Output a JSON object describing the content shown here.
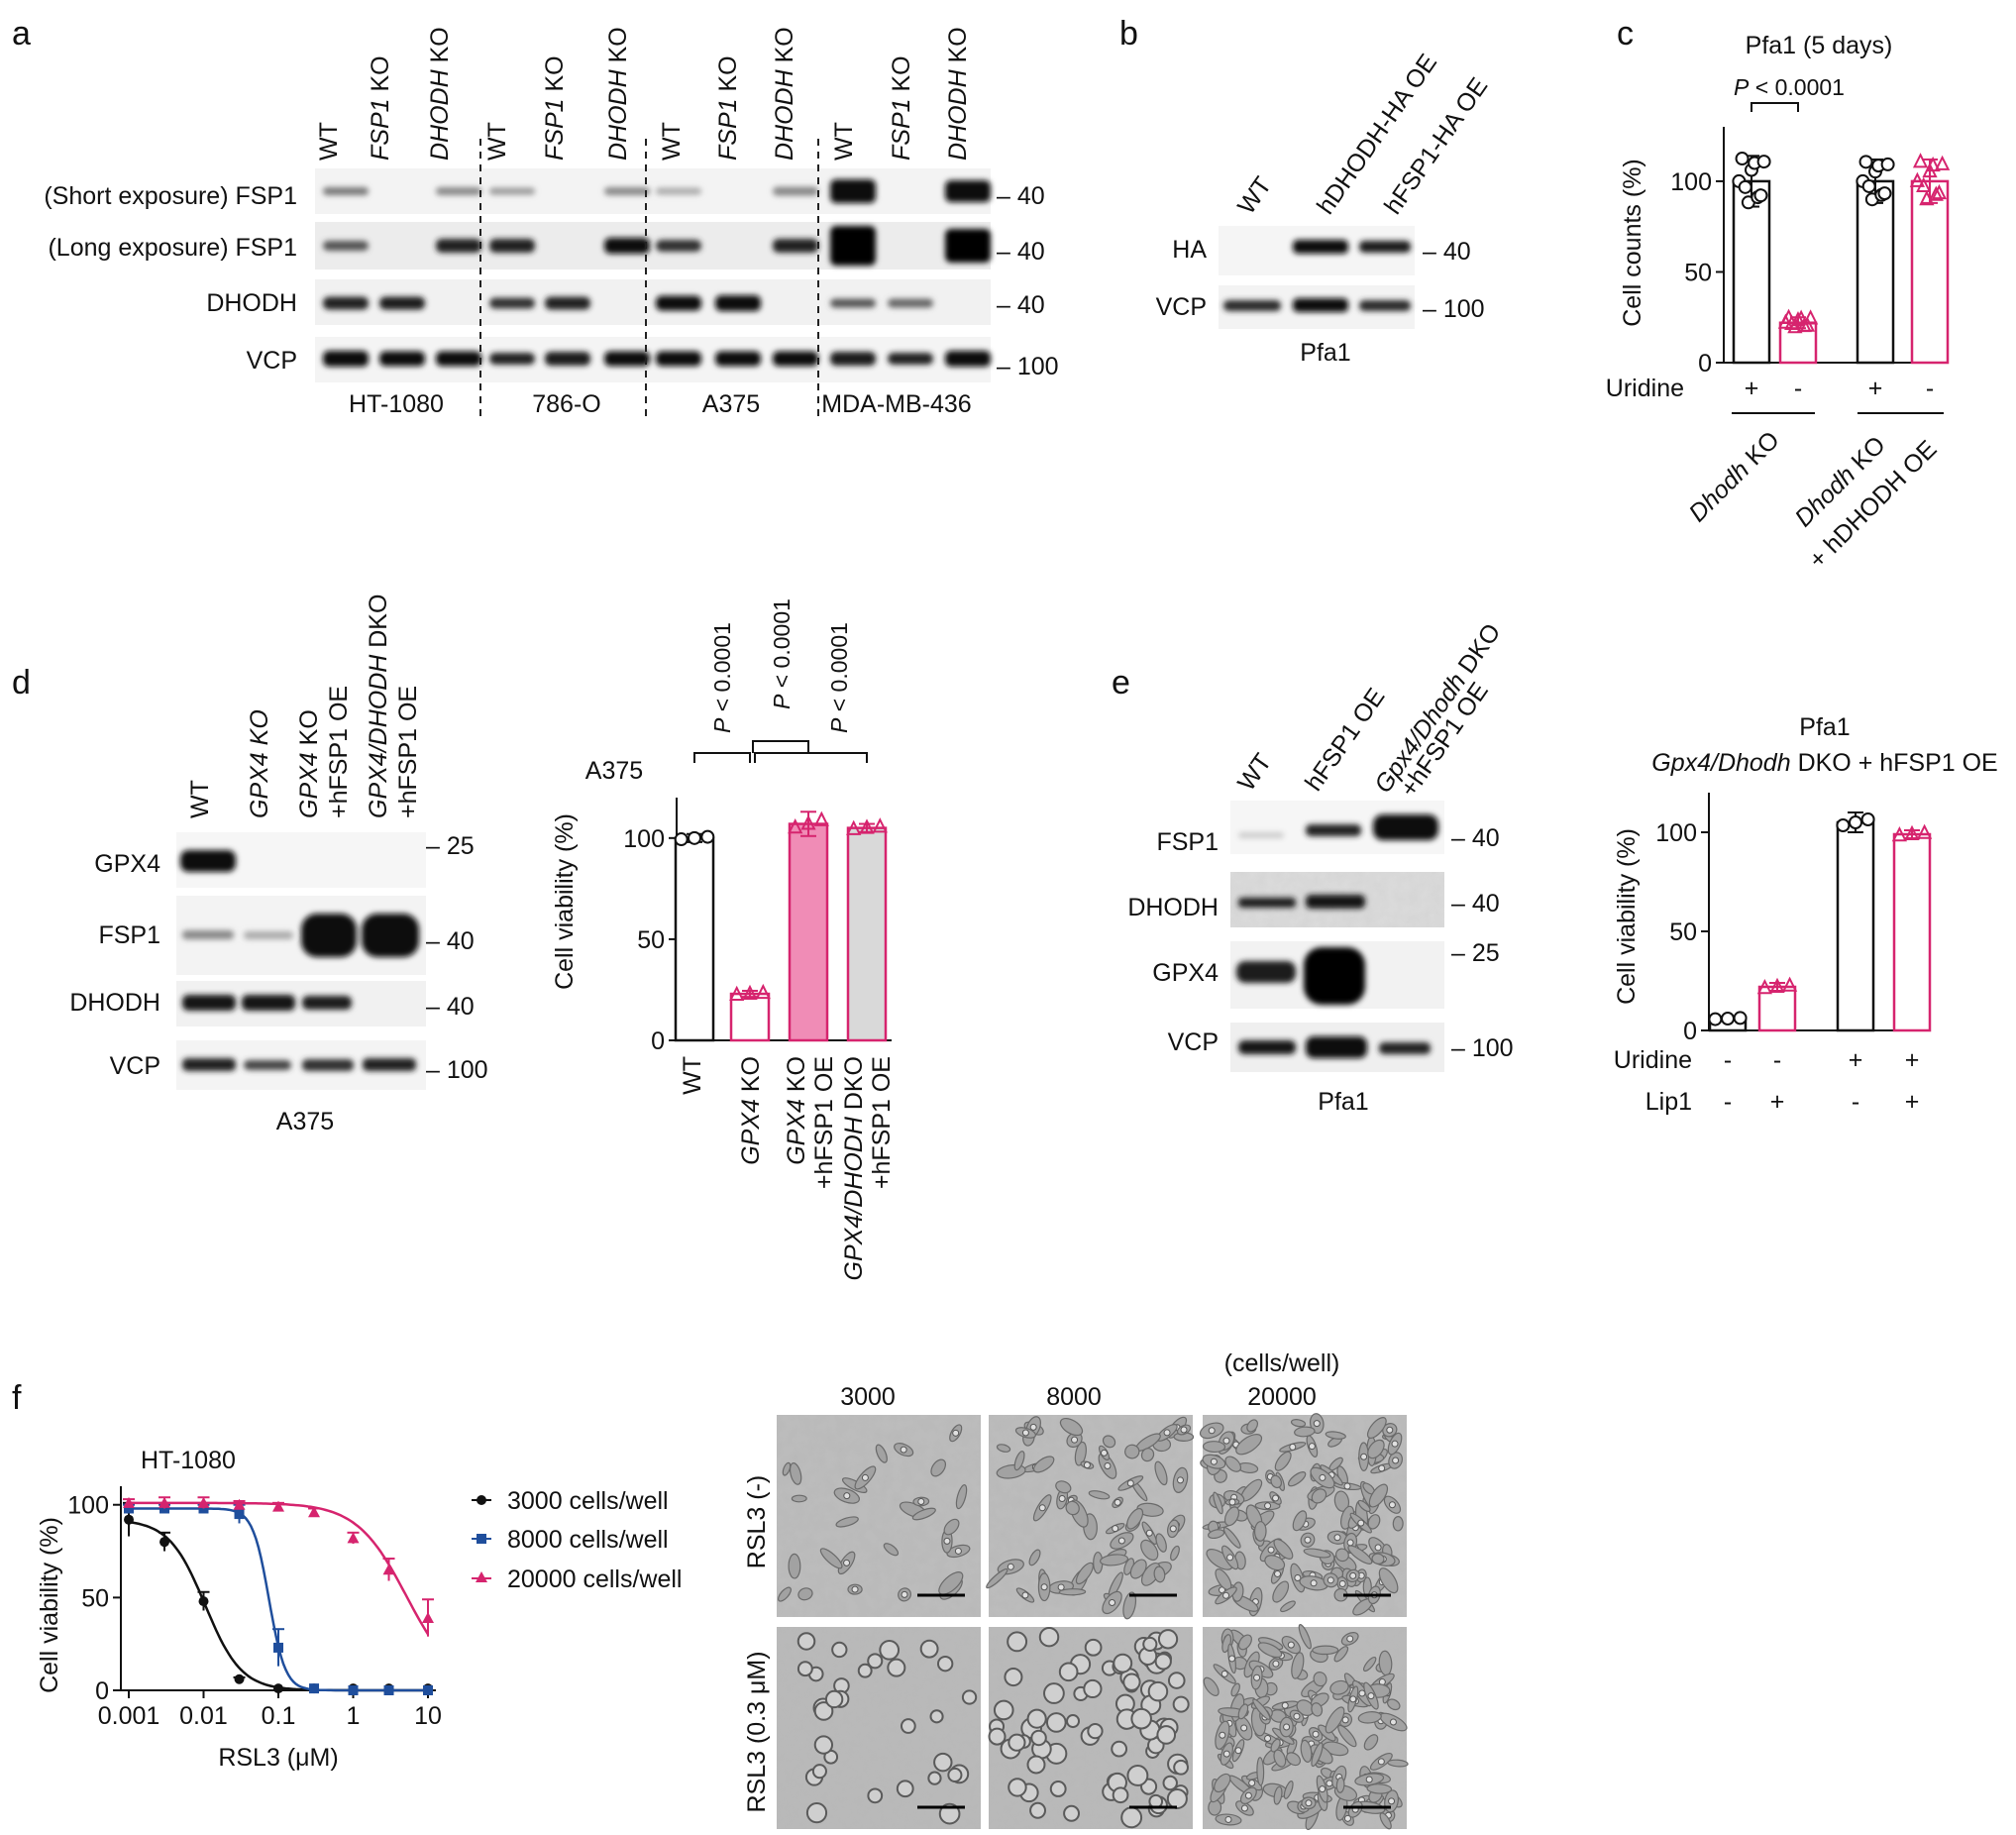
{
  "panels": {
    "a": {
      "letter": "a",
      "lanes": [
        "WT",
        "FSP1",
        "DHODH",
        "WT",
        "FSP1",
        "DHODH",
        "WT",
        "FSP1",
        "DHODH",
        "WT",
        "FSP1",
        "DHODH"
      ],
      "lane_suffix": " KO",
      "rows": [
        "(Short exposure) FSP1",
        "(Long exposure) FSP1",
        "DHODH",
        "VCP"
      ],
      "markers": [
        "– 40",
        "– 40",
        "– 40",
        "– 100"
      ],
      "cell_lines": [
        "HT-1080",
        "786-O",
        "A375",
        "MDA-MB-436"
      ]
    },
    "b": {
      "letter": "b",
      "lanes": [
        "WT",
        "hDHODH-HA OE",
        "hFSP1-HA OE"
      ],
      "rows": [
        "HA",
        "VCP"
      ],
      "markers": [
        "– 40",
        "– 100"
      ],
      "cell_line": "Pfa1"
    },
    "c": {
      "letter": "c",
      "title": "Pfa1 (5 days)",
      "pvalue": "< 0.0001",
      "ylabel": "Cell counts (%)",
      "uridine_label": "Uridine",
      "uridine_signs": [
        "+",
        "-",
        "+",
        "-"
      ],
      "group1_gene": "Dhodh",
      "group_suffix": " KO",
      "group2_gene": "Dhodh",
      "group2_extra": "+ hDHODH OE"
    },
    "d": {
      "letter": "d",
      "lanes_blot": [
        "WT",
        "GPX4 KO",
        "GPX4 KO +hFSP1 OE",
        "GPX4/DHODH DKO +hFSP1 OE"
      ],
      "rows": [
        "GPX4",
        "FSP1",
        "DHODH",
        "VCP"
      ],
      "markers": [
        "– 25",
        "– 40",
        "– 40",
        "– 100"
      ],
      "cell_line": "A375",
      "chart_title": "A375",
      "pvalues": [
        "< 0.0001",
        "< 0.0001",
        "< 0.0001"
      ],
      "ylabel": "Cell viability (%)",
      "xcats": [
        "WT",
        "GPX4 KO",
        "GPX4 KO +hFSP1 OE",
        "GPX4/DHODH DKO +hFSP1 OE"
      ]
    },
    "e": {
      "letter": "e",
      "lanes": [
        "WT",
        "hFSP1 OE",
        "Gpx4/Dhodh DKO +hFSP1 OE"
      ],
      "rows": [
        "FSP1",
        "DHODH",
        "GPX4",
        "VCP"
      ],
      "markers": [
        "– 40",
        "– 40",
        "– 25",
        "– 100"
      ],
      "cell_line": "Pfa1",
      "chart_title1": "Pfa1",
      "chart_title2_gene": "Gpx4/Dhodh",
      "chart_title2_rest": " DKO + hFSP1 OE",
      "ylabel": "Cell viability (%)",
      "uridine_label": "Uridine",
      "lip1_label": "Lip1",
      "uridine_signs": [
        "-",
        "-",
        "+",
        "+"
      ],
      "lip1_signs": [
        "-",
        "+",
        "-",
        "+"
      ]
    },
    "f": {
      "letter": "f",
      "title": "HT-1080",
      "ylabel": "Cell viability (%)",
      "xlabel": "RSL3 (μM)",
      "legend": [
        "3000 cells/well",
        "8000 cells/well",
        "20000 cells/well"
      ],
      "micro_cols": [
        "3000",
        "8000",
        "20000"
      ],
      "micro_unit": "(cells/well)",
      "micro_rows": [
        "RSL3 (-)",
        "RSL3 (0.3 μM)"
      ]
    }
  },
  "colors": {
    "magenta": "#d6246e",
    "blue": "#1f4e9c",
    "black": "#111111",
    "pink_fill": "#f08cb6",
    "grey_fill": "#d9d9d9"
  },
  "chart_data": [
    {
      "panel": "c",
      "type": "bar",
      "categories": [
        "Dhodh KO +Uridine",
        "Dhodh KO -Uridine",
        "Dhodh KO + hDHODH OE +Uridine",
        "Dhodh KO + hDHODH OE -Uridine"
      ],
      "values": [
        100,
        22,
        100,
        100
      ],
      "errors": [
        14,
        3,
        12,
        12
      ],
      "ylabel": "Cell counts (%)",
      "ylim": [
        0,
        130
      ],
      "yticks": [
        0,
        50,
        100
      ]
    },
    {
      "panel": "d",
      "type": "bar",
      "categories": [
        "WT",
        "GPX4 KO",
        "GPX4 KO +hFSP1 OE",
        "GPX4/DHODH DKO +hFSP1 OE"
      ],
      "values": [
        100,
        23,
        107,
        105
      ],
      "errors": [
        2,
        1.5,
        6,
        2
      ],
      "ylabel": "Cell viability (%)",
      "ylim": [
        0,
        120
      ],
      "yticks": [
        0,
        50,
        100
      ]
    },
    {
      "panel": "e",
      "type": "bar",
      "categories": [
        "-Uridine -Lip1",
        "-Uridine +Lip1",
        "+Uridine -Lip1",
        "+Uridine +Lip1"
      ],
      "values": [
        6,
        22,
        105,
        99
      ],
      "errors": [
        1,
        2,
        5,
        2
      ],
      "ylabel": "Cell viability (%)",
      "ylim": [
        0,
        120
      ],
      "yticks": [
        0,
        50,
        100
      ]
    },
    {
      "panel": "f",
      "type": "line",
      "xscale": "log",
      "xlim": [
        0.001,
        10
      ],
      "xticks": [
        "0.001",
        "0.01",
        "0.1",
        "1",
        "10"
      ],
      "ylim": [
        0,
        110
      ],
      "yticks": [
        0,
        50,
        100
      ],
      "xlabel": "RSL3 (μM)",
      "ylabel": "Cell viability (%)",
      "series": [
        {
          "name": "3000 cells/well",
          "x": [
            0.001,
            0.003,
            0.01,
            0.03,
            0.1,
            0.3,
            1,
            3,
            10
          ],
          "y": [
            92,
            80,
            48,
            6,
            1,
            1,
            1,
            1,
            1
          ],
          "err": [
            9,
            5,
            5,
            1,
            0,
            0,
            0,
            0,
            0
          ]
        },
        {
          "name": "8000 cells/well",
          "x": [
            0.001,
            0.003,
            0.01,
            0.03,
            0.1,
            0.3,
            1,
            3,
            10
          ],
          "y": [
            98,
            98,
            98,
            95,
            23,
            1,
            0,
            0,
            0
          ],
          "err": [
            2,
            2,
            2,
            5,
            10,
            0,
            0,
            0,
            0
          ]
        },
        {
          "name": "20000 cells/well",
          "x": [
            0.001,
            0.003,
            0.01,
            0.03,
            0.1,
            0.3,
            1,
            3,
            10
          ],
          "y": [
            101,
            101,
            101,
            100,
            99,
            96,
            82,
            65,
            39
          ],
          "err": [
            2,
            3,
            3,
            2,
            2,
            2,
            3,
            6,
            10
          ]
        }
      ]
    }
  ]
}
